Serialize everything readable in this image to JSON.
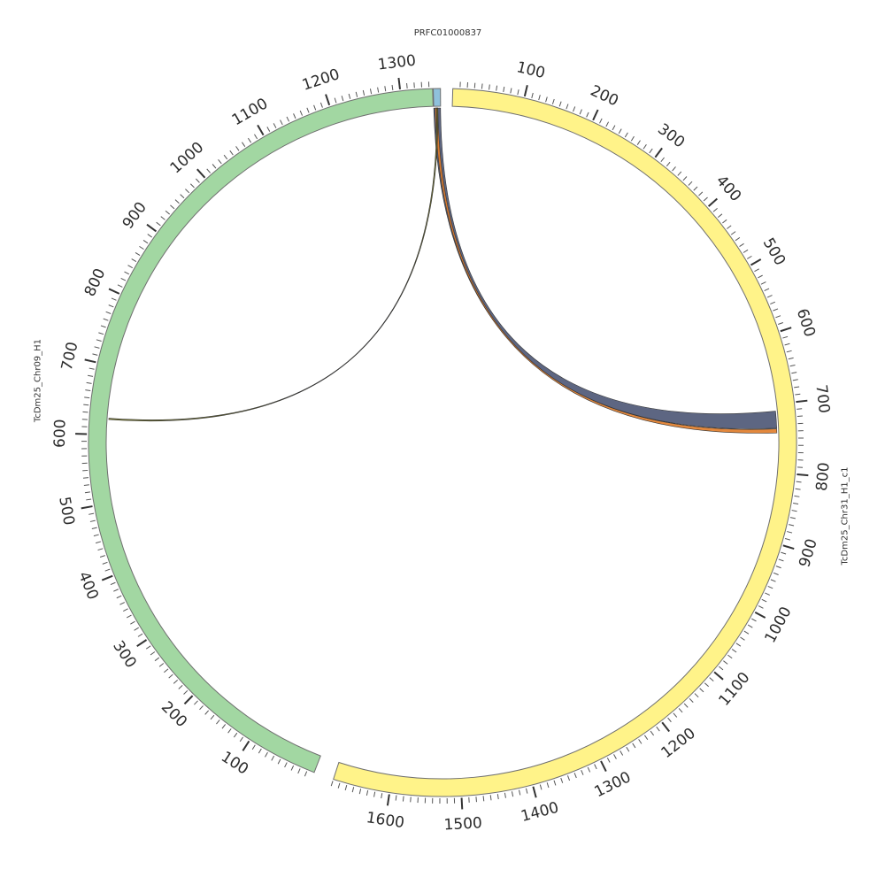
{
  "chart_data": {
    "type": "circos",
    "segments": [
      {
        "name": "PRFC01000837",
        "length": 10,
        "color": "#8fc1dc",
        "label_pos": "top"
      },
      {
        "name": "TcDm25_Chr31_H1_c1",
        "length": 1680,
        "color": "#fff389",
        "label_pos": "right",
        "labeled_ticks": [
          100,
          200,
          300,
          400,
          500,
          600,
          700,
          800,
          900,
          1000,
          1100,
          1200,
          1300,
          1400,
          1500,
          1600
        ]
      },
      {
        "name": "TcDm25_Chr09_H1",
        "length": 1345,
        "color": "#a2d7a2",
        "label_pos": "left",
        "labeled_ticks": [
          100,
          200,
          300,
          400,
          500,
          600,
          700,
          800,
          900,
          1000,
          1100,
          1200,
          1300
        ]
      }
    ],
    "links": [
      {
        "from_segment": 0,
        "from": [
          0,
          10
        ],
        "to_segment": 1,
        "to": [
          710,
          735
        ],
        "color": "#4b5574"
      },
      {
        "from_segment": 0,
        "from": [
          2,
          6
        ],
        "to_segment": 1,
        "to": [
          736,
          742
        ],
        "color": "#e07b28"
      },
      {
        "from_segment": 0,
        "from": [
          4,
          6
        ],
        "to_segment": 2,
        "to": [
          622,
          624
        ],
        "color": "#6b6b1e"
      }
    ]
  }
}
